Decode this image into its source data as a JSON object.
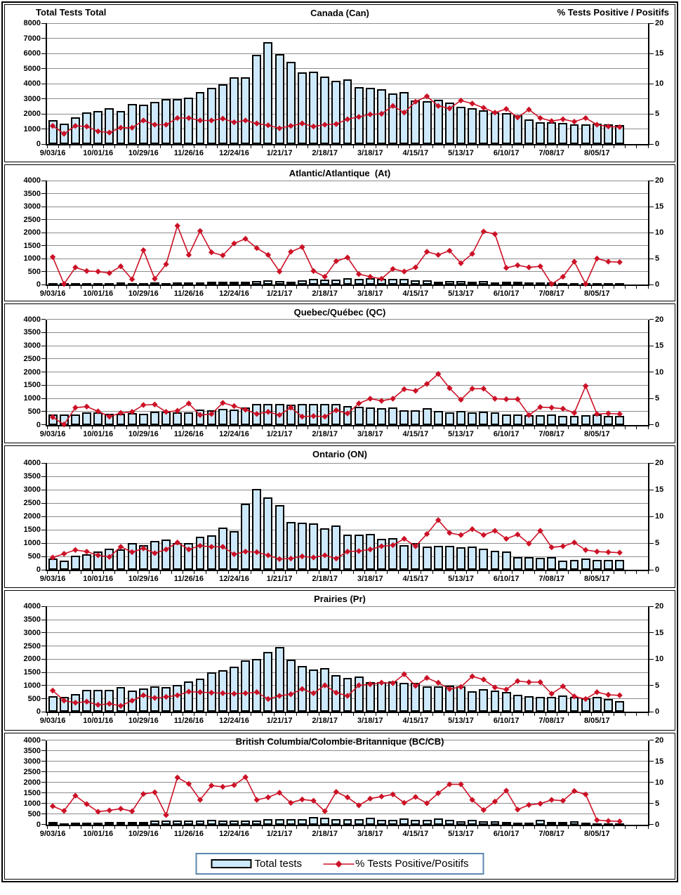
{
  "header": {
    "left_axis_title": "Total Tests Total",
    "right_axis_title": "% Tests Positive / Positifs"
  },
  "legend": {
    "bars_label": "Total tests",
    "line_label": "% Tests Positive/Positifs"
  },
  "colors": {
    "bar_fill": "#CDE9FB",
    "bar_border": "#000000",
    "line": "#CC1126",
    "gridline": "#8C8C8C",
    "axis": "#000000",
    "legend_border": "#5E87B0"
  },
  "x_axis": {
    "slots": 53,
    "tick_every": 4,
    "tick_labels": [
      "9/03/16",
      "10/01/16",
      "10/29/16",
      "11/26/16",
      "12/24/16",
      "1/21/17",
      "2/18/17",
      "3/18/17",
      "4/15/17",
      "5/13/17",
      "6/10/17",
      "7/08/17",
      "8/05/17"
    ]
  },
  "chart_data": [
    {
      "type": "bar+line",
      "title": "Canada (Can)",
      "y_left": {
        "max": 8000,
        "step": 1000
      },
      "y_right": {
        "max": 20,
        "step": 5,
        "grid_step": 2.5
      },
      "series": [
        {
          "name": "Total tests",
          "axis": "left",
          "values": [
            1600,
            1350,
            1750,
            2100,
            2200,
            2350,
            2200,
            2650,
            2600,
            2800,
            3000,
            3000,
            3050,
            3450,
            3700,
            3950,
            4400,
            4400,
            5900,
            6750,
            5950,
            5450,
            4750,
            4800,
            4450,
            4200,
            4300,
            3750,
            3700,
            3650,
            3350,
            3450,
            2900,
            2850,
            2950,
            2750,
            2450,
            2350,
            2250,
            2100,
            2050,
            1900,
            1650,
            1450,
            1450,
            1400,
            1300,
            1300,
            1350,
            1300,
            1250
          ]
        },
        {
          "name": "% Tests Positive/Positifs",
          "axis": "right",
          "values": [
            3.0,
            1.7,
            3.0,
            2.9,
            2.1,
            1.9,
            2.7,
            2.7,
            3.9,
            3.2,
            3.2,
            4.3,
            4.3,
            3.9,
            3.9,
            4.2,
            3.6,
            3.9,
            3.4,
            3.1,
            2.6,
            3.0,
            3.4,
            2.9,
            3.2,
            3.3,
            4.1,
            4.5,
            4.9,
            5.0,
            6.3,
            5.2,
            7.0,
            7.9,
            6.3,
            5.9,
            7.2,
            6.7,
            6.0,
            5.2,
            5.8,
            4.4,
            5.7,
            4.3,
            3.8,
            4.1,
            3.7,
            4.3,
            3.2,
            2.9,
            2.8
          ]
        }
      ]
    },
    {
      "type": "bar+line",
      "title": "Atlantic/Atlantique  (At)",
      "y_left": {
        "max": 4000,
        "step": 500
      },
      "y_right": {
        "max": 20,
        "step": 5,
        "grid_step": 2.5
      },
      "series": [
        {
          "name": "Total tests",
          "axis": "left",
          "values": [
            60,
            70,
            60,
            70,
            70,
            70,
            80,
            70,
            70,
            80,
            70,
            80,
            90,
            100,
            110,
            110,
            110,
            110,
            130,
            160,
            140,
            120,
            160,
            220,
            200,
            190,
            240,
            230,
            250,
            210,
            230,
            230,
            160,
            180,
            120,
            140,
            130,
            110,
            130,
            100,
            110,
            110,
            90,
            100,
            80,
            60,
            70,
            60,
            50,
            60,
            50
          ]
        },
        {
          "name": "% Tests Positive/Positifs",
          "axis": "right",
          "values": [
            5.3,
            0.1,
            3.3,
            2.6,
            2.5,
            2.2,
            3.5,
            1.0,
            6.6,
            1.1,
            3.9,
            11.3,
            5.7,
            10.3,
            6.2,
            5.6,
            7.9,
            8.8,
            7.0,
            5.7,
            2.5,
            6.3,
            7.2,
            2.6,
            1.5,
            4.5,
            5.2,
            2.0,
            1.5,
            1.1,
            3.0,
            2.5,
            3.3,
            6.3,
            5.7,
            6.5,
            4.1,
            5.9,
            10.2,
            9.7,
            3.2,
            3.7,
            3.3,
            3.5,
            0.1,
            1.5,
            4.4,
            0.1,
            5.0,
            4.4,
            4.3
          ]
        }
      ]
    },
    {
      "type": "bar+line",
      "title": "Quebec/Québec (QC)",
      "y_left": {
        "max": 4000,
        "step": 500
      },
      "y_right": {
        "max": 20,
        "step": 5,
        "grid_step": 2.5
      },
      "series": [
        {
          "name": "Total tests",
          "axis": "left",
          "values": [
            380,
            380,
            400,
            480,
            460,
            430,
            420,
            450,
            430,
            490,
            490,
            480,
            480,
            580,
            550,
            610,
            590,
            660,
            790,
            800,
            800,
            760,
            800,
            790,
            800,
            790,
            700,
            680,
            650,
            640,
            650,
            560,
            540,
            640,
            520,
            470,
            520,
            480,
            500,
            460,
            400,
            380,
            360,
            360,
            380,
            330,
            350,
            360,
            390,
            350,
            330
          ]
        },
        {
          "name": "% Tests Positive/Positifs",
          "axis": "right",
          "values": [
            1.5,
            0.1,
            3.3,
            3.5,
            2.6,
            1.6,
            2.3,
            2.5,
            3.8,
            3.9,
            2.5,
            2.7,
            4.1,
            1.9,
            2.1,
            4.2,
            3.6,
            2.9,
            2.1,
            2.5,
            1.9,
            3.3,
            1.6,
            1.7,
            1.6,
            2.8,
            2.2,
            4.1,
            5.0,
            4.6,
            5.0,
            6.8,
            6.5,
            7.8,
            9.7,
            7.0,
            4.8,
            6.9,
            6.9,
            5.0,
            4.9,
            4.9,
            1.9,
            3.4,
            3.3,
            3.1,
            2.3,
            7.4,
            2.1,
            2.2,
            2.1
          ]
        }
      ]
    },
    {
      "type": "bar+line",
      "title": "Ontario (ON)",
      "y_left": {
        "max": 4000,
        "step": 500
      },
      "y_right": {
        "max": 20,
        "step": 5,
        "grid_step": 2.5
      },
      "series": [
        {
          "name": "Total tests",
          "axis": "left",
          "values": [
            420,
            350,
            530,
            580,
            680,
            800,
            770,
            1000,
            920,
            1080,
            1140,
            1010,
            1000,
            1250,
            1280,
            1580,
            1450,
            2480,
            3030,
            2700,
            2430,
            1790,
            1760,
            1740,
            1560,
            1650,
            1320,
            1320,
            1340,
            1160,
            1180,
            920,
            1010,
            880,
            900,
            900,
            840,
            860,
            780,
            700,
            680,
            480,
            480,
            460,
            480,
            350,
            380,
            420,
            380,
            380,
            370
          ]
        },
        {
          "name": "% Tests Positive/Positifs",
          "axis": "right",
          "values": [
            2.3,
            3.0,
            3.7,
            3.4,
            2.7,
            2.4,
            4.3,
            3.3,
            4.0,
            3.1,
            3.8,
            5.1,
            3.8,
            4.5,
            4.3,
            4.3,
            2.9,
            3.4,
            3.3,
            2.7,
            2.0,
            2.1,
            2.5,
            2.3,
            2.7,
            2.1,
            3.4,
            3.5,
            3.8,
            4.4,
            4.6,
            5.8,
            4.4,
            6.7,
            9.3,
            6.9,
            6.5,
            7.6,
            6.5,
            7.3,
            5.8,
            6.6,
            4.9,
            7.3,
            4.2,
            4.4,
            5.1,
            3.7,
            3.4,
            3.3,
            3.2
          ]
        }
      ]
    },
    {
      "type": "bar+line",
      "title": "Prairies (Pr)",
      "y_left": {
        "max": 4000,
        "step": 500
      },
      "y_right": {
        "max": 20,
        "step": 5,
        "grid_step": 2.5
      },
      "series": [
        {
          "name": "Total tests",
          "axis": "left",
          "values": [
            600,
            560,
            680,
            840,
            840,
            840,
            940,
            810,
            890,
            960,
            950,
            1020,
            1150,
            1260,
            1510,
            1580,
            1720,
            1950,
            2000,
            2270,
            2450,
            1980,
            1750,
            1620,
            1670,
            1400,
            1300,
            1350,
            1130,
            1130,
            1160,
            1110,
            1110,
            980,
            980,
            1000,
            960,
            780,
            850,
            800,
            760,
            640,
            600,
            560,
            580,
            630,
            580,
            510,
            560,
            500,
            420
          ]
        },
        {
          "name": "% Tests Positive/Positifs",
          "axis": "right",
          "values": [
            4.0,
            2.1,
            1.7,
            1.9,
            1.3,
            1.5,
            1.1,
            2.1,
            3.1,
            2.6,
            2.8,
            3.1,
            3.8,
            3.7,
            3.6,
            3.5,
            3.4,
            3.5,
            3.7,
            2.4,
            3.0,
            3.3,
            4.3,
            3.5,
            5.0,
            3.6,
            3.0,
            5.0,
            5.2,
            5.5,
            5.4,
            7.1,
            4.9,
            6.4,
            5.5,
            4.3,
            4.7,
            6.7,
            6.1,
            4.6,
            4.2,
            5.8,
            5.6,
            5.6,
            3.4,
            4.8,
            2.9,
            2.4,
            3.7,
            3.2,
            3.1
          ]
        }
      ]
    },
    {
      "type": "bar+line",
      "title": "British Columbia/Colombie-Britannique (BC/CB)",
      "y_left": {
        "max": 4000,
        "step": 500
      },
      "y_right": {
        "max": 20,
        "step": 5,
        "grid_step": 2.5
      },
      "series": [
        {
          "name": "Total tests",
          "axis": "left",
          "values": [
            140,
            60,
            90,
            90,
            80,
            120,
            110,
            110,
            140,
            190,
            190,
            190,
            190,
            190,
            230,
            190,
            190,
            190,
            190,
            270,
            250,
            270,
            250,
            350,
            330,
            250,
            250,
            250,
            310,
            230,
            210,
            290,
            210,
            230,
            290,
            210,
            150,
            230,
            150,
            150,
            130,
            90,
            90,
            210,
            110,
            110,
            150,
            90,
            70,
            70,
            50
          ]
        },
        {
          "name": "% Tests Positive/Positifs",
          "axis": "right",
          "values": [
            4.4,
            3.3,
            6.9,
            4.9,
            3.1,
            3.4,
            3.8,
            3.2,
            7.3,
            7.7,
            2.3,
            11.2,
            9.7,
            5.9,
            9.3,
            9.0,
            9.4,
            11.3,
            5.9,
            6.5,
            7.6,
            5.2,
            6.0,
            5.7,
            3.2,
            7.8,
            6.5,
            4.6,
            6.2,
            6.7,
            7.2,
            5.2,
            6.6,
            5.1,
            7.5,
            9.6,
            9.6,
            5.9,
            3.5,
            5.5,
            8.1,
            3.6,
            4.7,
            5.0,
            5.9,
            5.7,
            8.0,
            7.2,
            1.1,
            0.9,
            0.8
          ]
        }
      ]
    }
  ]
}
